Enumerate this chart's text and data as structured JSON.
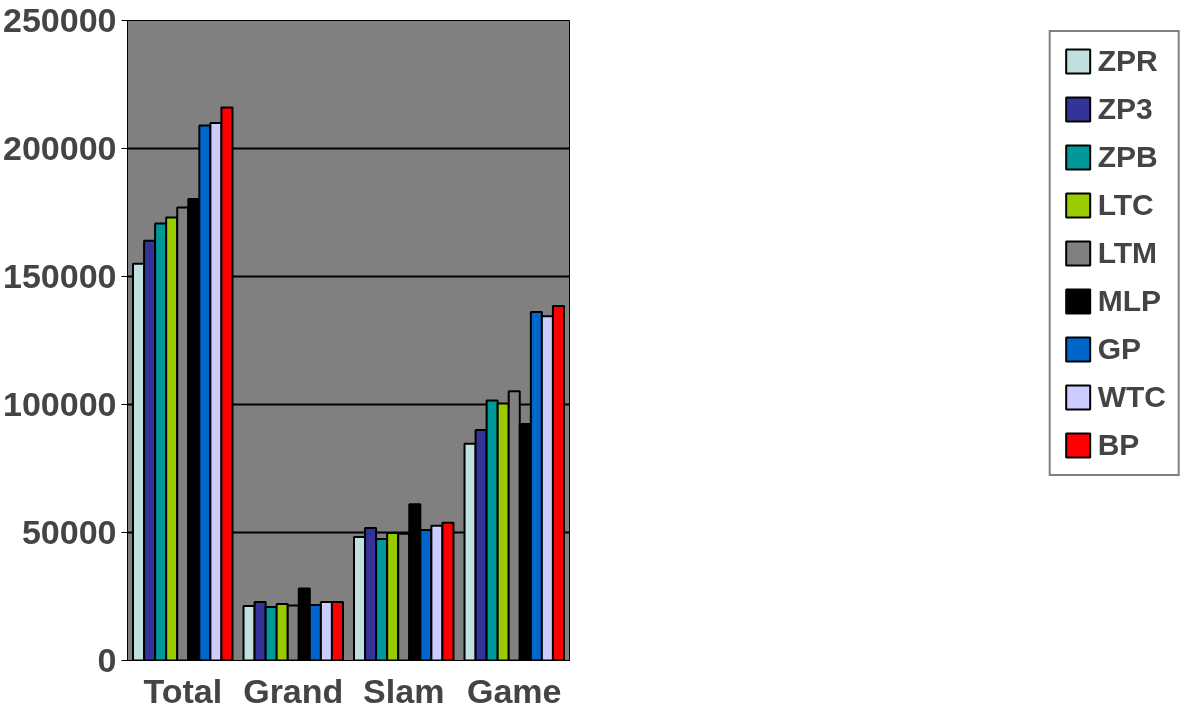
{
  "chart_data": {
    "type": "bar",
    "categories": [
      "Total",
      "Grand",
      "Slam",
      "Game"
    ],
    "series": [
      {
        "name": "ZPR",
        "color": "#c0e0e0",
        "values": [
          155000,
          21300,
          48200,
          84700
        ]
      },
      {
        "name": "ZP3",
        "color": "#333399",
        "values": [
          164000,
          22900,
          51800,
          90000
        ]
      },
      {
        "name": "ZPB",
        "color": "#009999",
        "values": [
          170700,
          20900,
          47500,
          101600
        ]
      },
      {
        "name": "LTC",
        "color": "#99cc00",
        "values": [
          173000,
          22100,
          49800,
          100400
        ]
      },
      {
        "name": "LTM",
        "color": "#808080",
        "values": [
          177000,
          21500,
          49500,
          105200
        ]
      },
      {
        "name": "MLP",
        "color": "#000000",
        "values": [
          180300,
          28100,
          61000,
          92400
        ]
      },
      {
        "name": "GP",
        "color": "#0066cc",
        "values": [
          209000,
          21700,
          51000,
          136100
        ]
      },
      {
        "name": "WTC",
        "color": "#ccccff",
        "values": [
          210000,
          22900,
          52600,
          134500
        ]
      },
      {
        "name": "BP",
        "color": "#ff0000",
        "values": [
          216000,
          22900,
          53800,
          138500
        ]
      }
    ],
    "ylim": [
      0,
      250000
    ],
    "yticks": [
      0,
      50000,
      100000,
      150000,
      200000,
      250000
    ],
    "grid": "y",
    "legend": "right"
  }
}
